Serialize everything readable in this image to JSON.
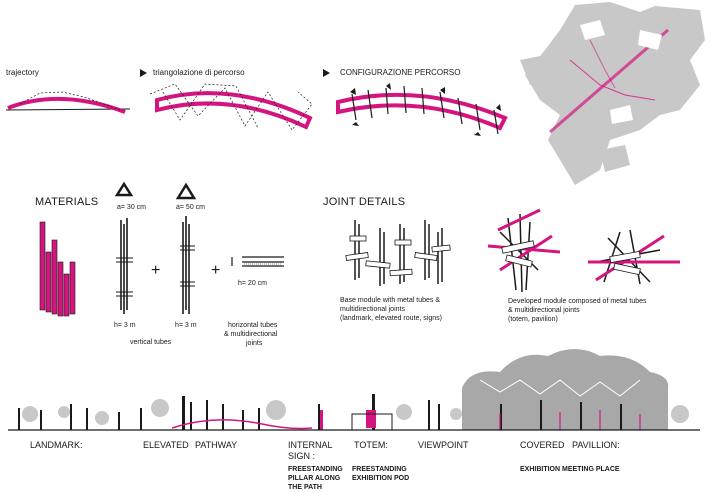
{
  "top_row": {
    "trajectory_label": "trajectory",
    "triangulation_label": "triangolazione  di  percorso",
    "configuration_label": "CONFIGURAZIONE  PERCORSO"
  },
  "materials": {
    "heading": "MATERIALS",
    "tube_a_small": "a= 30 cm",
    "tube_a_large": "a= 50 cm",
    "height_1": "h= 3 m",
    "height_2": "h= 3 m",
    "height_3": "h= 20 cm",
    "vertical_tubes_caption": "vertical tubes",
    "plus_sign": "+",
    "horizontal_caption_line1": "horizontal tubes",
    "horizontal_caption_line2": "& multidirectional",
    "horizontal_caption_line3": "joints"
  },
  "joint_details": {
    "heading": "JOINT DETAILS",
    "base_module_line1": "Base module with metal tubes &",
    "base_module_line2": "multidirectional joints",
    "base_module_line3": "(landmark, elevated route, signs)",
    "developed_line1": "Developed module composed of metal tubes",
    "developed_line2": "& multidirectional joints",
    "developed_line3": "(totem, pavilion)"
  },
  "section_labels": {
    "landmark": "LANDMARK:",
    "elevated": "ELEVATED",
    "pathway": "PATHWAY",
    "internal_line1": "INTERNAL",
    "internal_line2": "SIGN :",
    "internal_sub1": "FREESTANDING",
    "internal_sub2": "PILLAR ALONG",
    "internal_sub3": "THE PATH",
    "totem": "TOTEM:",
    "totem_sub1": "FREESTANDING",
    "totem_sub2": "EXHIBITION POD",
    "viewpoint": "VIEWPOINT",
    "covered": "COVERED",
    "pavillion": "PAVILLION:",
    "pavillion_sub": "EXHIBITION MEETING PLACE"
  },
  "colors": {
    "accent_magenta": "#d4147f",
    "map_gray": "#c8c8c8",
    "structure_gray": "#9a9a9a",
    "ink": "#1a1a1a"
  }
}
